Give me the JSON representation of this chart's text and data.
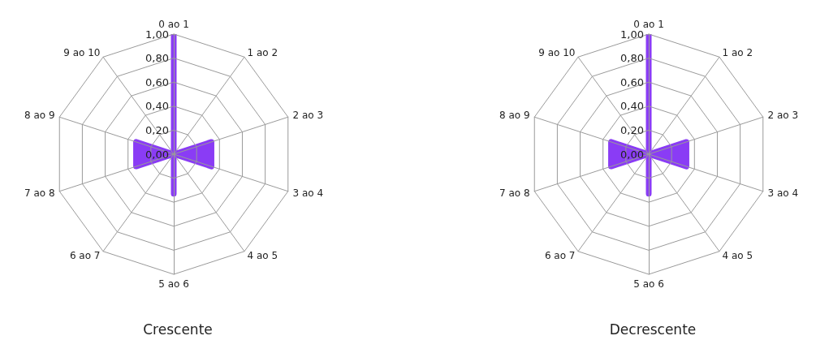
{
  "chart_data": [
    {
      "type": "radar",
      "title": "Crescente",
      "categories": [
        "0 ao 1",
        "1 ao 2",
        "2 ao 3",
        "3 ao 4",
        "4 ao 5",
        "5 ao 6",
        "6 ao 7",
        "7 ao 8",
        "8 ao 9",
        "9 ao 10"
      ],
      "series": [
        {
          "color": "#8a3cf5",
          "values": [
            1,
            0,
            0.33,
            0.33,
            0,
            0.33,
            0,
            0.33,
            0.33,
            0
          ]
        }
      ],
      "ylim": [
        0,
        1
      ],
      "yticks": [
        {
          "value": 0,
          "label": "0,00"
        },
        {
          "value": 0.2,
          "label": "0,20"
        },
        {
          "value": 0.4,
          "label": "0,40"
        },
        {
          "value": 0.6,
          "label": "0,60"
        },
        {
          "value": 0.8,
          "label": "0,80"
        },
        {
          "value": 1,
          "label": "1,00"
        }
      ],
      "grid": true
    },
    {
      "type": "radar",
      "title": "Decrescente",
      "categories": [
        "0 ao 1",
        "1 ao 2",
        "2 ao 3",
        "3 ao 4",
        "4 ao 5",
        "5 ao 6",
        "6 ao 7",
        "7 ao 8",
        "8 ao 9",
        "9 ao 10"
      ],
      "series": [
        {
          "color": "#8a3cf5",
          "values": [
            1,
            0,
            0.33,
            0.33,
            0,
            0.33,
            0,
            0.33,
            0.33,
            0
          ]
        }
      ],
      "ylim": [
        0,
        1
      ],
      "yticks": [
        {
          "value": 0,
          "label": "0,00"
        },
        {
          "value": 0.2,
          "label": "0,20"
        },
        {
          "value": 0.4,
          "label": "0,40"
        },
        {
          "value": 0.6,
          "label": "0,60"
        },
        {
          "value": 0.8,
          "label": "0,80"
        },
        {
          "value": 1,
          "label": "1,00"
        }
      ],
      "grid": true
    }
  ]
}
